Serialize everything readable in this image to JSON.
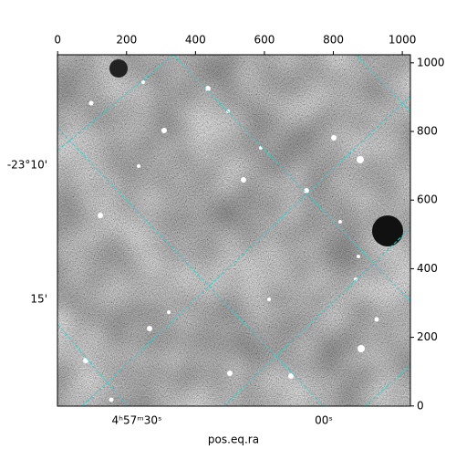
{
  "chart_data": {
    "type": "image",
    "xlabel": "pos.eq.ra",
    "xlim": [
      -0.5,
      1023.5
    ],
    "xticks": [
      0,
      200,
      400,
      600,
      800,
      1000
    ],
    "ylim": [
      -0.5,
      1023.5
    ],
    "yticks": [
      0,
      200,
      400,
      600,
      800,
      1000
    ],
    "ra_tick_labels": [
      "4ʰ57ᵐ30ˢ",
      "00ˢ"
    ],
    "dec_tick_labels": [
      "-23°10'",
      "15'"
    ],
    "grid_color": "#40c8c8"
  }
}
